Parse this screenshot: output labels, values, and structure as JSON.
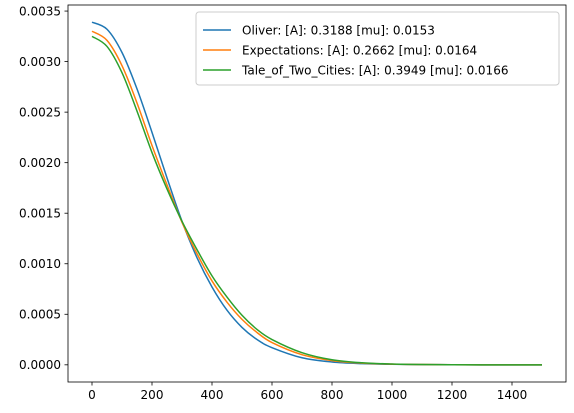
{
  "chart_data": {
    "type": "line",
    "title": "",
    "xlabel": "",
    "ylabel": "",
    "xlim": [
      -80,
      1580
    ],
    "ylim": [
      -0.00017,
      0.00356
    ],
    "xticks": [
      0,
      200,
      400,
      600,
      800,
      1000,
      1200,
      1400
    ],
    "xtick_labels": [
      "0",
      "200",
      "400",
      "600",
      "800",
      "1000",
      "1200",
      "1400"
    ],
    "yticks": [
      0.0,
      0.0005,
      0.001,
      0.0015,
      0.002,
      0.0025,
      0.003,
      0.0035
    ],
    "ytick_labels": [
      "0.0000",
      "0.0005",
      "0.0010",
      "0.0015",
      "0.0020",
      "0.0025",
      "0.0030",
      "0.0035"
    ],
    "grid": false,
    "legend_position": "top-right",
    "x": [
      0,
      50,
      100,
      150,
      200,
      250,
      300,
      350,
      400,
      450,
      500,
      550,
      600,
      700,
      800,
      900,
      1000,
      1100,
      1200,
      1300,
      1400,
      1500
    ],
    "series": [
      {
        "name": "Oliver: [A]: 0.3188 [mu]: 0.0153",
        "color": "#1f77b4",
        "values": [
          0.00339,
          0.00332,
          0.00309,
          0.00273,
          0.0023,
          0.00185,
          0.00142,
          0.00106,
          0.00077,
          0.00054,
          0.00037,
          0.00025,
          0.00017,
          7e-05,
          2.8e-05,
          1.2e-05,
          5e-06,
          2e-06,
          1e-06,
          0.0,
          0.0,
          0.0
        ]
      },
      {
        "name": "Expectations: [A]: 0.2662 [mu]: 0.0164",
        "color": "#ff7f0e",
        "values": [
          0.0033,
          0.00321,
          0.00296,
          0.00259,
          0.00217,
          0.00178,
          0.00141,
          0.0011,
          0.00083,
          0.00062,
          0.00045,
          0.00032,
          0.00022,
          0.0001,
          4.2e-05,
          1.7e-05,
          7e-06,
          3e-06,
          1e-06,
          0.0,
          0.0,
          0.0
        ]
      },
      {
        "name": "Tale_of_Two_Cities: [A]: 0.3949 [mu]: 0.0166",
        "color": "#2ca02c",
        "values": [
          0.00325,
          0.00315,
          0.00289,
          0.00251,
          0.0021,
          0.00174,
          0.00142,
          0.00114,
          0.00088,
          0.00067,
          0.00049,
          0.00035,
          0.00025,
          0.00012,
          5e-05,
          2e-05,
          8e-06,
          3e-06,
          1e-06,
          0.0,
          0.0,
          0.0
        ]
      }
    ]
  }
}
